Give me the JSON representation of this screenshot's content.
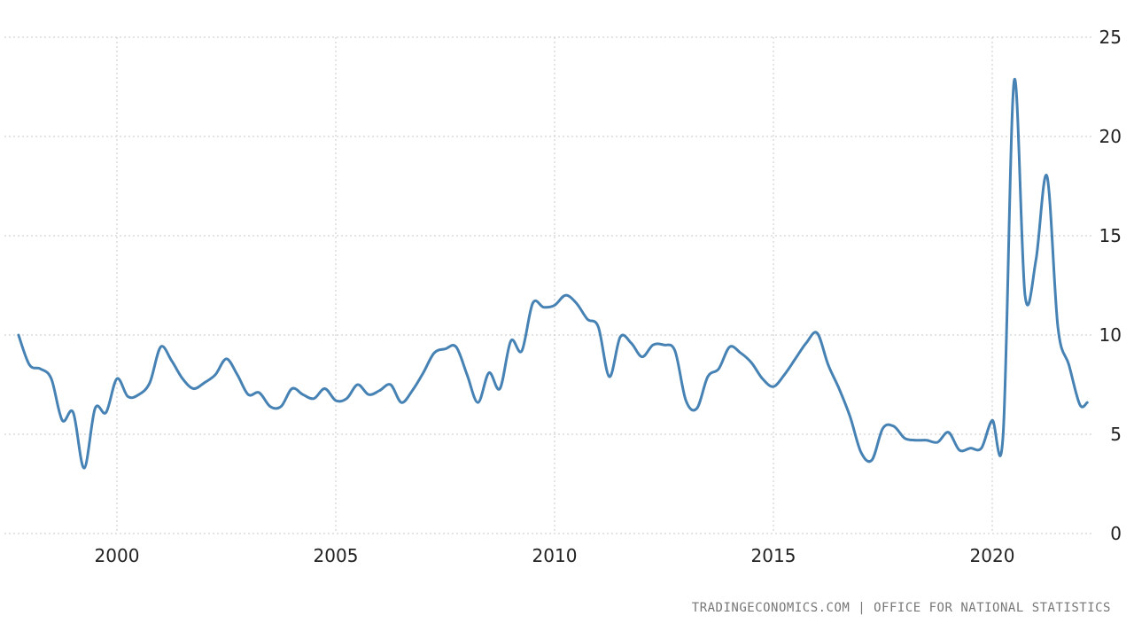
{
  "chart_data": {
    "type": "line",
    "title": "",
    "xlabel": "",
    "ylabel": "",
    "xlim": [
      1997.75,
      2022.17
    ],
    "ylim": [
      0,
      25
    ],
    "grid": true,
    "x_ticks": [
      "2000",
      "2005",
      "2010",
      "2015",
      "2020"
    ],
    "y_ticks": [
      "0",
      "5",
      "10",
      "15",
      "20",
      "25"
    ],
    "colors": {
      "line": "#4682b4",
      "grid": "#c8c8c8",
      "text": "#222222",
      "source": "#777777"
    },
    "series": [
      {
        "x": [
          1997.75,
          1998.0,
          1998.25,
          1998.5,
          1998.75,
          1999.0,
          1999.25,
          1999.5,
          1999.75,
          2000.0,
          2000.25,
          2000.5,
          2000.75,
          2001.0,
          2001.25,
          2001.5,
          2001.75,
          2002.0,
          2002.25,
          2002.5,
          2002.75,
          2003.0,
          2003.25,
          2003.5,
          2003.75,
          2004.0,
          2004.25,
          2004.5,
          2004.75,
          2005.0,
          2005.25,
          2005.5,
          2005.75,
          2006.0,
          2006.25,
          2006.5,
          2006.75,
          2007.0,
          2007.25,
          2007.5,
          2007.75,
          2008.0,
          2008.25,
          2008.5,
          2008.75,
          2009.0,
          2009.25,
          2009.5,
          2009.75,
          2010.0,
          2010.25,
          2010.5,
          2010.75,
          2011.0,
          2011.25,
          2011.5,
          2011.75,
          2012.0,
          2012.25,
          2012.5,
          2012.75,
          2013.0,
          2013.25,
          2013.5,
          2013.75,
          2014.0,
          2014.25,
          2014.5,
          2014.75,
          2015.0,
          2015.25,
          2015.5,
          2015.75,
          2016.0,
          2016.25,
          2016.5,
          2016.75,
          2017.0,
          2017.25,
          2017.5,
          2017.75,
          2018.0,
          2018.25,
          2018.5,
          2018.75,
          2019.0,
          2019.25,
          2019.5,
          2019.75,
          2020.0,
          2020.25,
          2020.5,
          2020.75,
          2021.0,
          2021.25,
          2021.5,
          2021.75,
          2022.0,
          2022.17
        ],
        "values": [
          10.0,
          8.5,
          8.3,
          7.8,
          5.7,
          6.1,
          3.3,
          6.3,
          6.1,
          7.8,
          6.9,
          7.0,
          7.6,
          9.4,
          8.7,
          7.8,
          7.3,
          7.6,
          8.0,
          8.8,
          8.0,
          7.0,
          7.1,
          6.4,
          6.4,
          7.3,
          7.0,
          6.8,
          7.3,
          6.7,
          6.8,
          7.5,
          7.0,
          7.2,
          7.5,
          6.6,
          7.2,
          8.1,
          9.1,
          9.3,
          9.4,
          8.0,
          6.6,
          8.1,
          7.3,
          9.7,
          9.2,
          11.6,
          11.4,
          11.5,
          12.0,
          11.6,
          10.8,
          10.4,
          7.9,
          9.9,
          9.6,
          8.9,
          9.5,
          9.5,
          9.2,
          6.7,
          6.3,
          7.9,
          8.3,
          9.4,
          9.1,
          8.6,
          7.8,
          7.4,
          8.0,
          8.8,
          9.6,
          10.1,
          8.5,
          7.3,
          5.9,
          4.1,
          3.7,
          5.3,
          5.4,
          4.8,
          4.7,
          4.7,
          4.6,
          5.1,
          4.2,
          4.3,
          4.3,
          5.7,
          5.0,
          22.8,
          12.0,
          13.8,
          18.0,
          10.4,
          8.5,
          6.5,
          6.6
        ]
      }
    ]
  },
  "source_text": "TRADINGECONOMICS.COM  |  OFFICE FOR NATIONAL STATISTICS"
}
